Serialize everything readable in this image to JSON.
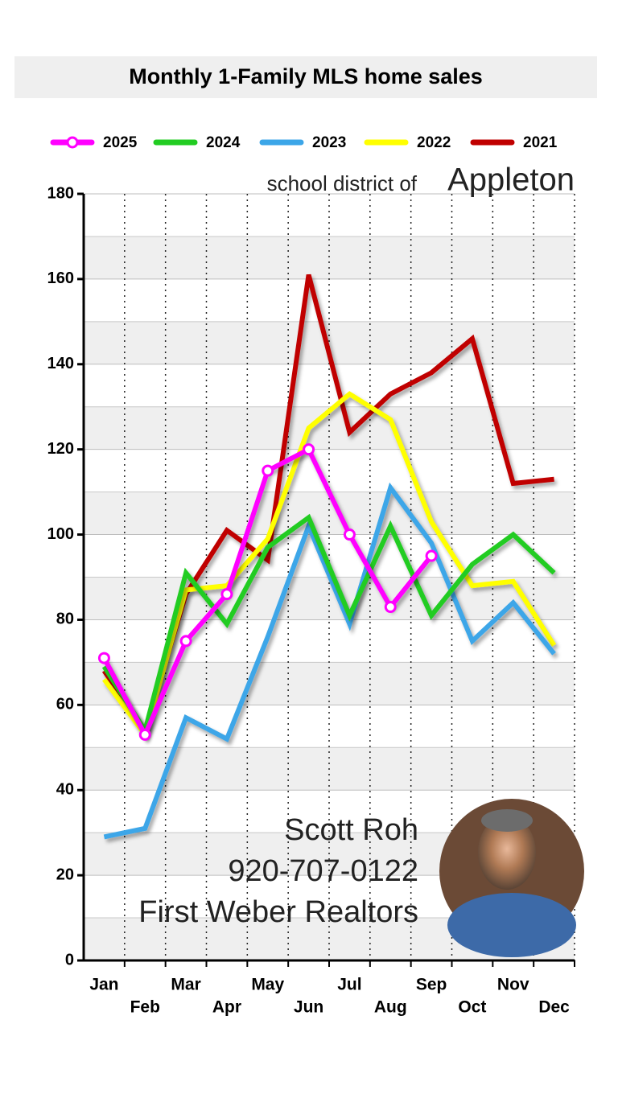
{
  "chart_data": {
    "type": "line",
    "title": "Monthly 1-Family MLS home sales",
    "annotations": [
      "school district of",
      "Appleton",
      "Scott Roh",
      "920-707-0122",
      "First Weber Realtors"
    ],
    "categories": [
      "Jan",
      "Feb",
      "Mar",
      "Apr",
      "May",
      "Jun",
      "Jul",
      "Aug",
      "Sep",
      "Oct",
      "Nov",
      "Dec"
    ],
    "series": [
      {
        "name": "2025",
        "color": "#ff00ff",
        "markers": true,
        "values": [
          71,
          53,
          75,
          86,
          115,
          120,
          100,
          83,
          95,
          null,
          null,
          null
        ]
      },
      {
        "name": "2024",
        "color": "#22cc22",
        "values": [
          69,
          54,
          91,
          79,
          97,
          104,
          81,
          102,
          81,
          93,
          100,
          91
        ]
      },
      {
        "name": "2023",
        "color": "#3ca6e8",
        "values": [
          29,
          31,
          57,
          52,
          76,
          102,
          79,
          111,
          98,
          75,
          84,
          72
        ]
      },
      {
        "name": "2022",
        "color": "#ffff00",
        "values": [
          66,
          53,
          87,
          88,
          99,
          125,
          133,
          127,
          103,
          88,
          89,
          74
        ]
      },
      {
        "name": "2021",
        "color": "#c00000",
        "values": [
          68,
          54,
          86,
          101,
          94,
          161,
          124,
          133,
          138,
          146,
          112,
          113
        ]
      }
    ],
    "ylim": [
      0,
      180
    ],
    "yticks": [
      0,
      20,
      40,
      60,
      80,
      100,
      120,
      140,
      160,
      180
    ],
    "minor_yticks": [
      10,
      30,
      50,
      70,
      90,
      110,
      130,
      150,
      170
    ],
    "grid": true
  }
}
